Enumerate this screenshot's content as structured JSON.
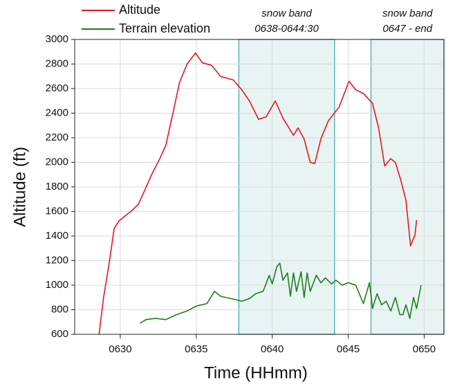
{
  "chart_data": {
    "type": "line",
    "xlabel": "Time (HHmm)",
    "ylabel": "Altitude (ft)",
    "xlim": [
      627,
      651.3
    ],
    "ylim": [
      600,
      3000
    ],
    "xticks": [
      {
        "value": 630,
        "label": "0630"
      },
      {
        "value": 635,
        "label": "0635"
      },
      {
        "value": 640,
        "label": "0640"
      },
      {
        "value": 645,
        "label": "0645"
      },
      {
        "value": 650,
        "label": "0650"
      }
    ],
    "yticks": [
      600,
      800,
      1000,
      1200,
      1400,
      1600,
      1800,
      2000,
      2200,
      2400,
      2600,
      2800,
      3000
    ],
    "grid": true,
    "legend": "top-left",
    "bands": [
      {
        "range": [
          637.8,
          644.1
        ],
        "label": [
          "snow band",
          "0638-0644:30"
        ],
        "color": "#e4f1f1",
        "edge": "#5fb0b0"
      },
      {
        "range": [
          646.5,
          651.3
        ],
        "label": [
          "snow band",
          "0647 - end"
        ],
        "color": "#e4f1f1",
        "edge": "#5fb0b0"
      }
    ],
    "series": [
      {
        "name": "Altitude",
        "color": "#e8141c",
        "x": [
          628.6,
          628.9,
          629.27,
          629.6,
          629.9,
          630.27,
          630.7,
          631.2,
          631.6,
          632.1,
          632.6,
          633.0,
          633.45,
          633.9,
          634.4,
          634.95,
          635.4,
          636.0,
          636.6,
          637.45,
          638.0,
          638.5,
          639.1,
          639.6,
          640.2,
          640.7,
          641.4,
          641.7,
          642.1,
          642.5,
          642.8,
          643.2,
          643.7,
          644.4,
          645.05,
          645.5,
          646.0,
          646.6,
          647.0,
          647.4,
          647.8,
          648.1,
          648.45,
          648.8,
          649.1,
          649.4,
          649.5
        ],
        "values": [
          600,
          900,
          1180,
          1460,
          1520,
          1560,
          1600,
          1660,
          1770,
          1910,
          2030,
          2140,
          2390,
          2650,
          2800,
          2890,
          2810,
          2790,
          2700,
          2670,
          2590,
          2500,
          2350,
          2370,
          2500,
          2360,
          2220,
          2280,
          2190,
          2000,
          1990,
          2190,
          2340,
          2450,
          2660,
          2590,
          2560,
          2480,
          2280,
          1970,
          2030,
          2000,
          1860,
          1690,
          1320,
          1410,
          1530
        ]
      },
      {
        "name": "Terrain elevation",
        "color": "#1c7d1c",
        "x": [
          631.3,
          631.7,
          632.3,
          633.0,
          633.7,
          634.4,
          635.0,
          635.7,
          636.2,
          636.6,
          637.3,
          638.0,
          638.5,
          638.9,
          639.4,
          639.8,
          640.0,
          640.3,
          640.5,
          640.7,
          641.0,
          641.2,
          641.4,
          641.6,
          641.9,
          642.1,
          642.3,
          642.5,
          642.9,
          643.2,
          643.5,
          643.9,
          644.2,
          644.6,
          645.0,
          645.5,
          646.0,
          646.4,
          646.6,
          646.9,
          647.2,
          647.5,
          647.8,
          648.1,
          648.4,
          648.6,
          648.8,
          649.05,
          649.3,
          649.5,
          649.8
        ],
        "values": [
          690,
          720,
          730,
          720,
          760,
          790,
          830,
          850,
          950,
          910,
          890,
          870,
          890,
          930,
          950,
          1080,
          1010,
          1150,
          1180,
          1040,
          1100,
          910,
          1100,
          950,
          1110,
          900,
          1100,
          950,
          1080,
          1020,
          1060,
          1010,
          1040,
          1000,
          1020,
          1000,
          850,
          1020,
          810,
          930,
          840,
          870,
          790,
          900,
          760,
          760,
          840,
          730,
          900,
          810,
          1000
        ]
      }
    ]
  }
}
